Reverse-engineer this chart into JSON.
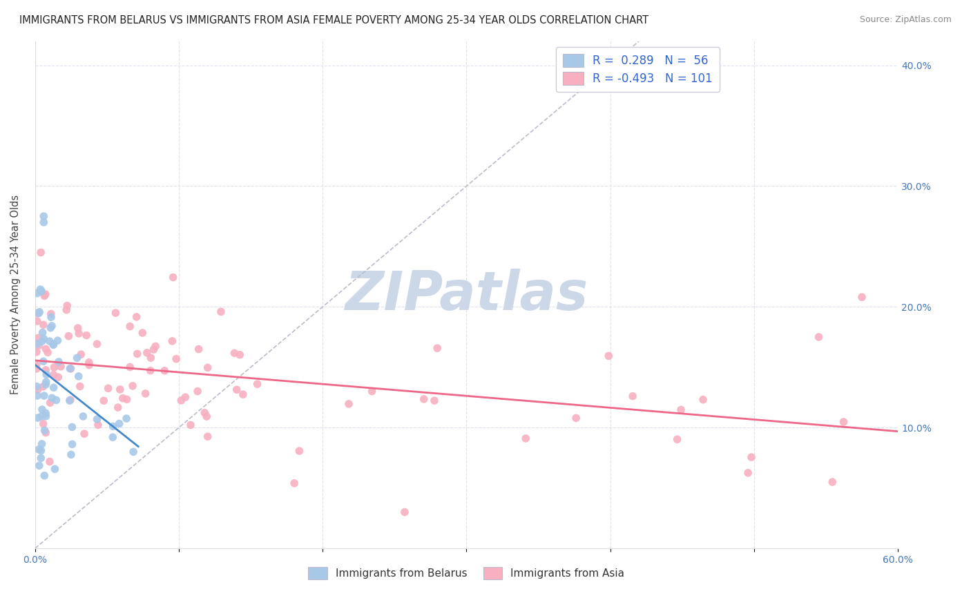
{
  "title": "IMMIGRANTS FROM BELARUS VS IMMIGRANTS FROM ASIA FEMALE POVERTY AMONG 25-34 YEAR OLDS CORRELATION CHART",
  "source": "Source: ZipAtlas.com",
  "ylabel": "Female Poverty Among 25-34 Year Olds",
  "xlim": [
    0.0,
    0.6
  ],
  "ylim": [
    0.0,
    0.42
  ],
  "xtick_vals": [
    0.0,
    0.1,
    0.2,
    0.3,
    0.4,
    0.5,
    0.6
  ],
  "xtick_labels": [
    "0.0%",
    "",
    "",
    "",
    "",
    "",
    "60.0%"
  ],
  "ytick_vals": [
    0.0,
    0.1,
    0.2,
    0.3,
    0.4
  ],
  "ytick_labels_right": [
    "",
    "10.0%",
    "20.0%",
    "30.0%",
    "40.0%"
  ],
  "legend_r_belarus": " 0.289",
  "legend_n_belarus": " 56",
  "legend_r_asia": "-0.493",
  "legend_n_asia": "101",
  "color_belarus": "#a8c8e8",
  "color_asia": "#f8b0c0",
  "trendline_belarus_color": "#4488cc",
  "trendline_asia_color": "#ee6688",
  "trendline_ref_color": "#bbbbcc",
  "watermark_zip": "ZIP",
  "watermark_atlas": "atlas",
  "watermark_color": "#ccd8e8",
  "grid_color": "#ddddee",
  "tick_label_color": "#4477bb",
  "title_color": "#222222",
  "source_color": "#888888",
  "legend_text_color": "#3366cc"
}
